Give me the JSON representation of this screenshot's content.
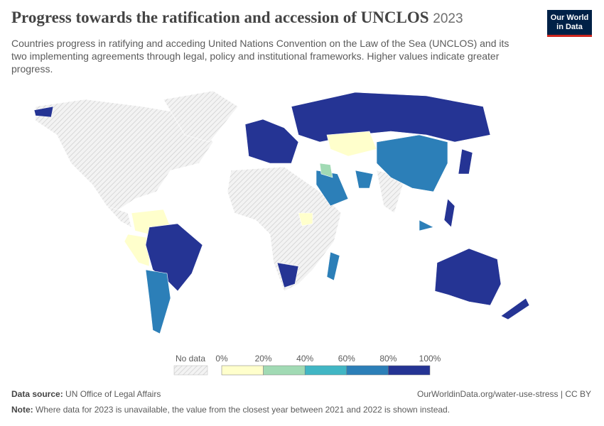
{
  "header": {
    "title": "Progress towards the ratification and accession of UNCLOS",
    "year": "2023",
    "subtitle": "Countries progress in ratifying and acceding United Nations Convention on the Law of the Sea (UNCLOS) and its two implementing agreements through legal, policy and institutional frameworks. Higher values indicate greater progress.",
    "logo": [
      "Our World",
      "in Data"
    ]
  },
  "legend": {
    "no_data": "No data",
    "ticks": [
      "0%",
      "20%",
      "40%",
      "60%",
      "80%",
      "100%"
    ],
    "colors": [
      "#ffffcc",
      "#a1dab4",
      "#41b6c4",
      "#2c7fb8",
      "#253494"
    ]
  },
  "footer": {
    "source_label": "Data source:",
    "source": "UN Office of Legal Affairs",
    "url": "OurWorldinData.org/water-use-stress | CC BY",
    "note_label": "Note:",
    "note": "Where data for 2023 is unavailable, the value from the closest year between 2021 and 2022 is shown instead."
  }
}
